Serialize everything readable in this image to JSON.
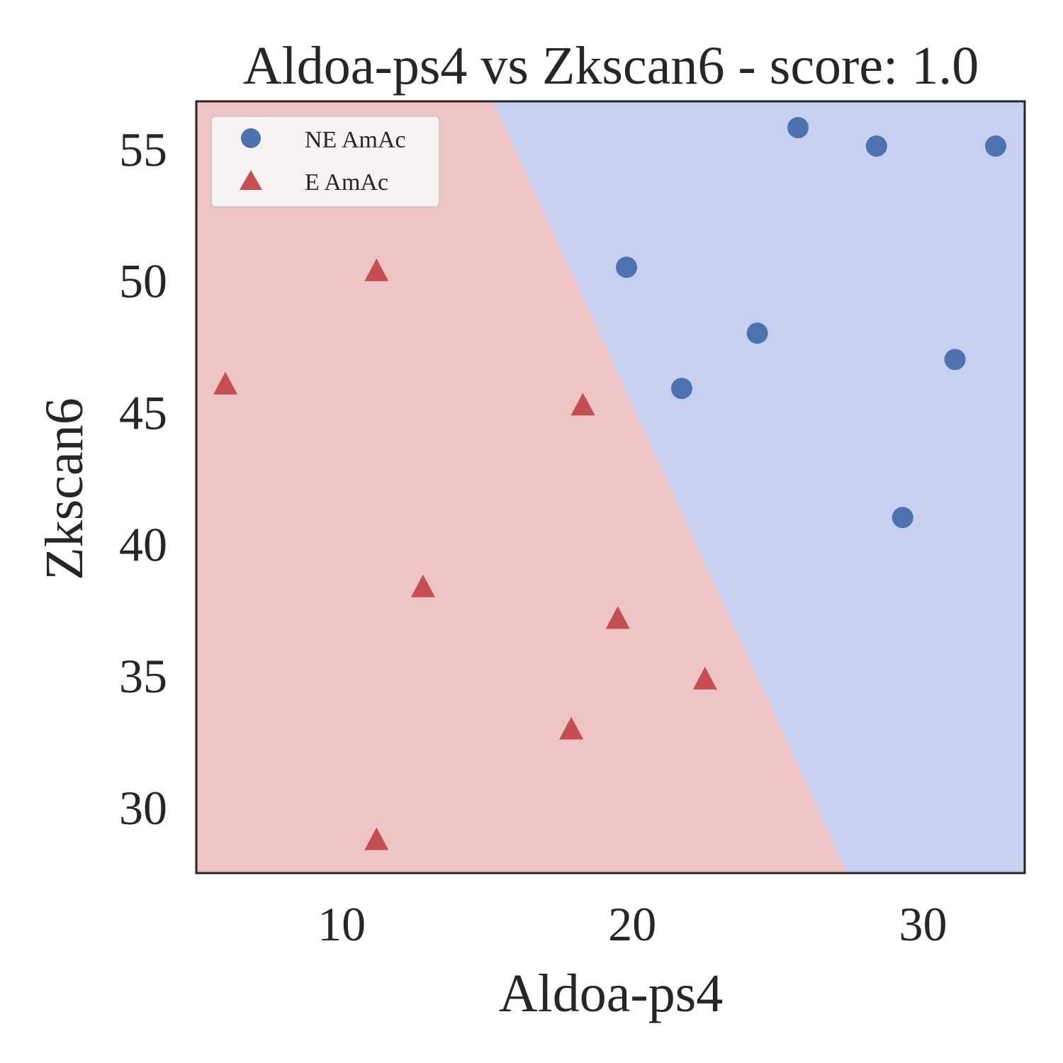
{
  "chart_data": {
    "type": "scatter",
    "title": "Aldoa-ps4 vs Zkscan6 - score: 1.0",
    "xlabel": "Aldoa-ps4",
    "ylabel": "Zkscan6",
    "xlim": [
      5,
      33.5
    ],
    "ylim": [
      27.5,
      56.8
    ],
    "xticks": [
      10,
      20,
      30
    ],
    "yticks": [
      30,
      35,
      40,
      45,
      50,
      55
    ],
    "grid": false,
    "legend_position": "top-left",
    "decision_boundary": {
      "line": [
        [
          15.2,
          56.8
        ],
        [
          27.4,
          27.5
        ]
      ],
      "regions": [
        {
          "class": "E AmAc",
          "side": "left",
          "color": "#efc4c4"
        },
        {
          "class": "NE AmAc",
          "side": "right",
          "color": "#c8d0f2"
        }
      ]
    },
    "series": [
      {
        "name": "NE AmAc",
        "marker": "circle",
        "color": "#4c72b0",
        "points": [
          {
            "x": 25.7,
            "y": 55.8
          },
          {
            "x": 28.4,
            "y": 55.1
          },
          {
            "x": 32.5,
            "y": 55.1
          },
          {
            "x": 19.8,
            "y": 50.5
          },
          {
            "x": 24.3,
            "y": 48.0
          },
          {
            "x": 21.7,
            "y": 45.9
          },
          {
            "x": 31.1,
            "y": 47.0
          },
          {
            "x": 29.3,
            "y": 41.0
          }
        ]
      },
      {
        "name": "E AmAc",
        "marker": "triangle",
        "color": "#c44e52",
        "points": [
          {
            "x": 11.2,
            "y": 50.3
          },
          {
            "x": 6.0,
            "y": 46.0
          },
          {
            "x": 18.3,
            "y": 45.2
          },
          {
            "x": 12.8,
            "y": 38.3
          },
          {
            "x": 19.5,
            "y": 37.1
          },
          {
            "x": 22.5,
            "y": 34.8
          },
          {
            "x": 17.9,
            "y": 32.9
          },
          {
            "x": 11.2,
            "y": 28.7
          }
        ]
      }
    ]
  }
}
